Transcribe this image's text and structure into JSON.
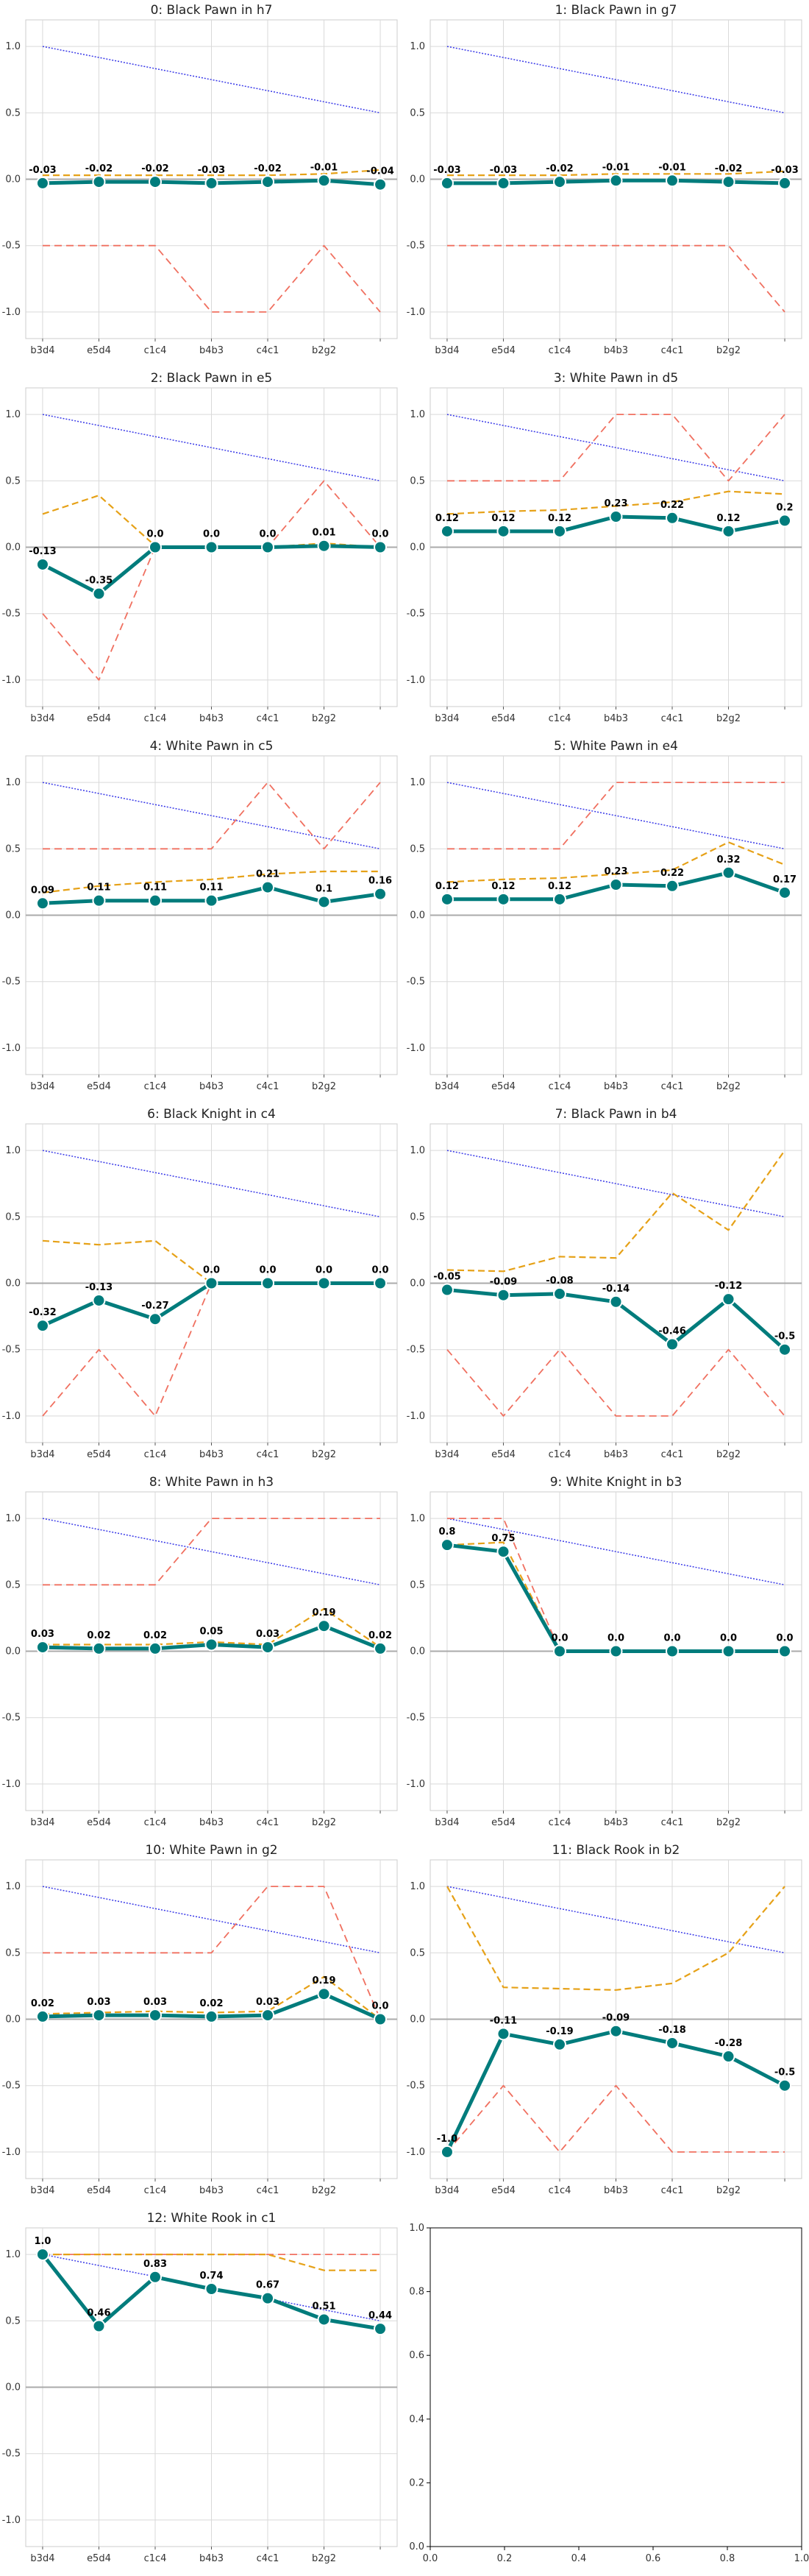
{
  "colors": {
    "main": "#007c7c",
    "orange": "#e6a117",
    "red": "#f07060",
    "blue": "#3a3ae8",
    "grid": "#d9d9d9",
    "zero": "#aaaaaa"
  },
  "chart_data": [
    {
      "type": "line",
      "title": "0: Black Pawn in h7",
      "categories": [
        "b3d4",
        "e5d4",
        "c1c4",
        "b4b3",
        "c4c1",
        "b2g2",
        ""
      ],
      "ylim": [
        -1.2,
        1.2
      ],
      "yticks": [
        "-1.0",
        "-0.5",
        "0.0",
        "0.5",
        "1.0"
      ],
      "grid": true,
      "series": [
        {
          "style": "main",
          "values": [
            -0.03,
            -0.02,
            -0.02,
            -0.03,
            -0.02,
            -0.01,
            -0.04
          ],
          "labels": [
            "-0.03",
            "-0.02",
            "-0.02",
            "-0.03",
            "-0.02",
            "-0.01",
            "-0.04"
          ]
        },
        {
          "style": "orange",
          "values": [
            0.03,
            0.03,
            0.03,
            0.03,
            0.03,
            0.04,
            0.07
          ]
        },
        {
          "style": "red",
          "values": [
            -0.5,
            -0.5,
            -0.5,
            -1.0,
            -1.0,
            -0.5,
            -1.0
          ]
        },
        {
          "style": "blue",
          "values": [
            1.0,
            0.917,
            0.833,
            0.75,
            0.667,
            0.583,
            0.5
          ]
        }
      ]
    },
    {
      "type": "line",
      "title": "1: Black Pawn in g7",
      "categories": [
        "b3d4",
        "e5d4",
        "c1c4",
        "b4b3",
        "c4c1",
        "b2g2",
        ""
      ],
      "ylim": [
        -1.2,
        1.2
      ],
      "yticks": [
        "-1.0",
        "-0.5",
        "0.0",
        "0.5",
        "1.0"
      ],
      "grid": true,
      "series": [
        {
          "style": "main",
          "values": [
            -0.03,
            -0.03,
            -0.02,
            -0.01,
            -0.01,
            -0.02,
            -0.03
          ],
          "labels": [
            "-0.03",
            "-0.03",
            "-0.02",
            "-0.01",
            "-0.01",
            "-0.02",
            "-0.03"
          ]
        },
        {
          "style": "orange",
          "values": [
            0.03,
            0.03,
            0.03,
            0.04,
            0.04,
            0.04,
            0.06
          ]
        },
        {
          "style": "red",
          "values": [
            -0.5,
            -0.5,
            -0.5,
            -0.5,
            -0.5,
            -0.5,
            -1.0
          ]
        },
        {
          "style": "blue",
          "values": [
            1.0,
            0.917,
            0.833,
            0.75,
            0.667,
            0.583,
            0.5
          ]
        }
      ]
    },
    {
      "type": "line",
      "title": "2: Black Pawn in e5",
      "categories": [
        "b3d4",
        "e5d4",
        "c1c4",
        "b4b3",
        "c4c1",
        "b2g2",
        ""
      ],
      "ylim": [
        -1.2,
        1.2
      ],
      "yticks": [
        "-1.0",
        "-0.5",
        "0.0",
        "0.5",
        "1.0"
      ],
      "grid": true,
      "series": [
        {
          "style": "main",
          "values": [
            -0.13,
            -0.35,
            0.0,
            0.0,
            0.0,
            0.01,
            0.0
          ],
          "labels": [
            "-0.13",
            "-0.35",
            "0.0",
            "0.0",
            "0.0",
            "0.01",
            "0.0"
          ]
        },
        {
          "style": "orange",
          "values": [
            0.25,
            0.39,
            0.01,
            0.0,
            0.0,
            0.03,
            0.0
          ]
        },
        {
          "style": "red",
          "values": [
            -0.5,
            -1.0,
            0.0,
            0.0,
            0.0,
            0.5,
            0.0
          ]
        },
        {
          "style": "blue",
          "values": [
            1.0,
            0.917,
            0.833,
            0.75,
            0.667,
            0.583,
            0.5
          ]
        }
      ]
    },
    {
      "type": "line",
      "title": "3: White Pawn in d5",
      "categories": [
        "b3d4",
        "e5d4",
        "c1c4",
        "b4b3",
        "c4c1",
        "b2g2",
        ""
      ],
      "ylim": [
        -1.2,
        1.2
      ],
      "yticks": [
        "-1.0",
        "-0.5",
        "0.0",
        "0.5",
        "1.0"
      ],
      "grid": true,
      "series": [
        {
          "style": "main",
          "values": [
            0.12,
            0.12,
            0.12,
            0.23,
            0.22,
            0.12,
            0.2
          ],
          "labels": [
            "0.12",
            "0.12",
            "0.12",
            "0.23",
            "0.22",
            "0.12",
            "0.2"
          ]
        },
        {
          "style": "orange",
          "values": [
            0.25,
            0.27,
            0.28,
            0.31,
            0.34,
            0.42,
            0.4
          ]
        },
        {
          "style": "red",
          "values": [
            0.5,
            0.5,
            0.5,
            1.0,
            1.0,
            0.5,
            1.0
          ]
        },
        {
          "style": "blue",
          "values": [
            1.0,
            0.917,
            0.833,
            0.75,
            0.667,
            0.583,
            0.5
          ]
        }
      ]
    },
    {
      "type": "line",
      "title": "4: White Pawn in c5",
      "categories": [
        "b3d4",
        "e5d4",
        "c1c4",
        "b4b3",
        "c4c1",
        "b2g2",
        ""
      ],
      "ylim": [
        -1.2,
        1.2
      ],
      "yticks": [
        "-1.0",
        "-0.5",
        "0.0",
        "0.5",
        "1.0"
      ],
      "grid": true,
      "series": [
        {
          "style": "main",
          "values": [
            0.09,
            0.11,
            0.11,
            0.11,
            0.21,
            0.1,
            0.16
          ],
          "labels": [
            "0.09",
            "0.11",
            "0.11",
            "0.11",
            "0.21",
            "0.1",
            "0.16"
          ]
        },
        {
          "style": "orange",
          "values": [
            0.17,
            0.22,
            0.25,
            0.27,
            0.31,
            0.33,
            0.33
          ]
        },
        {
          "style": "red",
          "values": [
            0.5,
            0.5,
            0.5,
            0.5,
            1.0,
            0.5,
            1.0
          ]
        },
        {
          "style": "blue",
          "values": [
            1.0,
            0.917,
            0.833,
            0.75,
            0.667,
            0.583,
            0.5
          ]
        }
      ]
    },
    {
      "type": "line",
      "title": "5: White Pawn in e4",
      "categories": [
        "b3d4",
        "e5d4",
        "c1c4",
        "b4b3",
        "c4c1",
        "b2g2",
        ""
      ],
      "ylim": [
        -1.2,
        1.2
      ],
      "yticks": [
        "-1.0",
        "-0.5",
        "0.0",
        "0.5",
        "1.0"
      ],
      "grid": true,
      "series": [
        {
          "style": "main",
          "values": [
            0.12,
            0.12,
            0.12,
            0.23,
            0.22,
            0.32,
            0.17
          ],
          "labels": [
            "0.12",
            "0.12",
            "0.12",
            "0.23",
            "0.22",
            "0.32",
            "0.17"
          ]
        },
        {
          "style": "orange",
          "values": [
            0.25,
            0.27,
            0.28,
            0.31,
            0.34,
            0.55,
            0.38
          ]
        },
        {
          "style": "red",
          "values": [
            0.5,
            0.5,
            0.5,
            1.0,
            1.0,
            1.0,
            1.0
          ]
        },
        {
          "style": "blue",
          "values": [
            1.0,
            0.917,
            0.833,
            0.75,
            0.667,
            0.583,
            0.5
          ]
        }
      ]
    },
    {
      "type": "line",
      "title": "6: Black Knight in c4",
      "categories": [
        "b3d4",
        "e5d4",
        "c1c4",
        "b4b3",
        "c4c1",
        "b2g2",
        ""
      ],
      "ylim": [
        -1.2,
        1.2
      ],
      "yticks": [
        "-1.0",
        "-0.5",
        "0.0",
        "0.5",
        "1.0"
      ],
      "grid": true,
      "series": [
        {
          "style": "main",
          "values": [
            -0.32,
            -0.13,
            -0.27,
            0.0,
            0.0,
            0.0,
            0.0
          ],
          "labels": [
            "-0.32",
            "-0.13",
            "-0.27",
            "0.0",
            "0.0",
            "0.0",
            "0.0"
          ]
        },
        {
          "style": "orange",
          "values": [
            0.32,
            0.29,
            0.32,
            0.0,
            0.0,
            0.0,
            0.0
          ]
        },
        {
          "style": "red",
          "values": [
            -1.0,
            -0.5,
            -1.0,
            0.0,
            0.0,
            0.0,
            0.0
          ]
        },
        {
          "style": "blue",
          "values": [
            1.0,
            0.917,
            0.833,
            0.75,
            0.667,
            0.583,
            0.5
          ]
        }
      ]
    },
    {
      "type": "line",
      "title": "7: Black Pawn in b4",
      "categories": [
        "b3d4",
        "e5d4",
        "c1c4",
        "b4b3",
        "c4c1",
        "b2g2",
        ""
      ],
      "ylim": [
        -1.2,
        1.2
      ],
      "yticks": [
        "-1.0",
        "-0.5",
        "0.0",
        "0.5",
        "1.0"
      ],
      "grid": true,
      "series": [
        {
          "style": "main",
          "values": [
            -0.05,
            -0.09,
            -0.08,
            -0.14,
            -0.46,
            -0.12,
            -0.5
          ],
          "labels": [
            "-0.05",
            "-0.09",
            "-0.08",
            "-0.14",
            "-0.46",
            "-0.12",
            "-0.5"
          ]
        },
        {
          "style": "orange",
          "values": [
            0.1,
            0.09,
            0.2,
            0.19,
            0.68,
            0.4,
            1.0
          ]
        },
        {
          "style": "red",
          "values": [
            -0.5,
            -1.0,
            -0.5,
            -1.0,
            -1.0,
            -0.5,
            -1.0
          ]
        },
        {
          "style": "blue",
          "values": [
            1.0,
            0.917,
            0.833,
            0.75,
            0.667,
            0.583,
            0.5
          ]
        }
      ]
    },
    {
      "type": "line",
      "title": "8: White Pawn in h3",
      "categories": [
        "b3d4",
        "e5d4",
        "c1c4",
        "b4b3",
        "c4c1",
        "b2g2",
        ""
      ],
      "ylim": [
        -1.2,
        1.2
      ],
      "yticks": [
        "-1.0",
        "-0.5",
        "0.0",
        "0.5",
        "1.0"
      ],
      "grid": true,
      "series": [
        {
          "style": "main",
          "values": [
            0.03,
            0.02,
            0.02,
            0.05,
            0.03,
            0.19,
            0.02
          ],
          "labels": [
            "0.03",
            "0.02",
            "0.02",
            "0.05",
            "0.03",
            "0.19",
            "0.02"
          ]
        },
        {
          "style": "orange",
          "values": [
            0.05,
            0.05,
            0.05,
            0.07,
            0.05,
            0.32,
            0.03
          ]
        },
        {
          "style": "red",
          "values": [
            0.5,
            0.5,
            0.5,
            1.0,
            1.0,
            1.0,
            1.0
          ]
        },
        {
          "style": "blue",
          "values": [
            1.0,
            0.917,
            0.833,
            0.75,
            0.667,
            0.583,
            0.5
          ]
        }
      ]
    },
    {
      "type": "line",
      "title": "9: White Knight in b3",
      "categories": [
        "b3d4",
        "e5d4",
        "c1c4",
        "b4b3",
        "c4c1",
        "b2g2",
        ""
      ],
      "ylim": [
        -1.2,
        1.2
      ],
      "yticks": [
        "-1.0",
        "-0.5",
        "0.0",
        "0.5",
        "1.0"
      ],
      "grid": true,
      "series": [
        {
          "style": "main",
          "values": [
            0.8,
            0.75,
            0.0,
            0.0,
            0.0,
            0.0,
            0.0
          ],
          "labels": [
            "0.8",
            "0.75",
            "0.0",
            "0.0",
            "0.0",
            "0.0",
            "0.0"
          ]
        },
        {
          "style": "orange",
          "values": [
            0.8,
            0.82,
            0.0,
            0.0,
            0.0,
            0.0,
            0.0
          ]
        },
        {
          "style": "red",
          "values": [
            1.0,
            1.0,
            0.0,
            0.0,
            0.0,
            0.0,
            0.0
          ]
        },
        {
          "style": "blue",
          "values": [
            1.0,
            0.917,
            0.833,
            0.75,
            0.667,
            0.583,
            0.5
          ]
        }
      ]
    },
    {
      "type": "line",
      "title": "10: White Pawn in g2",
      "categories": [
        "b3d4",
        "e5d4",
        "c1c4",
        "b4b3",
        "c4c1",
        "b2g2",
        ""
      ],
      "ylim": [
        -1.2,
        1.2
      ],
      "yticks": [
        "-1.0",
        "-0.5",
        "0.0",
        "0.5",
        "1.0"
      ],
      "grid": true,
      "series": [
        {
          "style": "main",
          "values": [
            0.02,
            0.03,
            0.03,
            0.02,
            0.03,
            0.19,
            0.0
          ],
          "labels": [
            "0.02",
            "0.03",
            "0.03",
            "0.02",
            "0.03",
            "0.19",
            "0.0"
          ]
        },
        {
          "style": "orange",
          "values": [
            0.04,
            0.05,
            0.06,
            0.05,
            0.06,
            0.32,
            0.0
          ]
        },
        {
          "style": "red",
          "values": [
            0.5,
            0.5,
            0.5,
            0.5,
            1.0,
            1.0,
            0.0
          ]
        },
        {
          "style": "blue",
          "values": [
            1.0,
            0.917,
            0.833,
            0.75,
            0.667,
            0.583,
            0.5
          ]
        }
      ]
    },
    {
      "type": "line",
      "title": "11: Black Rook in b2",
      "categories": [
        "b3d4",
        "e5d4",
        "c1c4",
        "b4b3",
        "c4c1",
        "b2g2",
        ""
      ],
      "ylim": [
        -1.2,
        1.2
      ],
      "yticks": [
        "-1.0",
        "-0.5",
        "0.0",
        "0.5",
        "1.0"
      ],
      "grid": true,
      "series": [
        {
          "style": "main",
          "values": [
            -1.0,
            -0.11,
            -0.19,
            -0.09,
            -0.18,
            -0.28,
            -0.5
          ],
          "labels": [
            "-1.0",
            "-0.11",
            "-0.19",
            "-0.09",
            "-0.18",
            "-0.28",
            "-0.5"
          ]
        },
        {
          "style": "orange",
          "values": [
            1.0,
            0.24,
            0.23,
            0.22,
            0.27,
            0.5,
            1.0
          ]
        },
        {
          "style": "red",
          "values": [
            -1.0,
            -0.5,
            -1.0,
            -0.5,
            -1.0,
            -1.0,
            -1.0
          ]
        },
        {
          "style": "blue",
          "values": [
            1.0,
            0.917,
            0.833,
            0.75,
            0.667,
            0.583,
            0.5
          ]
        }
      ]
    },
    {
      "type": "line",
      "title": "12: White Rook in c1",
      "categories": [
        "b3d4",
        "e5d4",
        "c1c4",
        "b4b3",
        "c4c1",
        "b2g2",
        ""
      ],
      "ylim": [
        -1.2,
        1.2
      ],
      "yticks": [
        "-1.0",
        "-0.5",
        "0.0",
        "0.5",
        "1.0"
      ],
      "grid": true,
      "series": [
        {
          "style": "main",
          "values": [
            1.0,
            0.46,
            0.83,
            0.74,
            0.67,
            0.51,
            0.44
          ],
          "labels": [
            "1.0",
            "0.46",
            "0.83",
            "0.74",
            "0.67",
            "0.51",
            "0.44"
          ]
        },
        {
          "style": "orange",
          "values": [
            1.0,
            1.0,
            1.0,
            1.0,
            1.0,
            0.88,
            0.88
          ]
        },
        {
          "style": "red",
          "values": [
            1.0,
            1.0,
            1.0,
            1.0,
            1.0,
            1.0,
            1.0
          ]
        },
        {
          "style": "blue",
          "values": [
            1.0,
            0.917,
            0.833,
            0.75,
            0.667,
            0.583,
            0.5
          ]
        }
      ]
    },
    {
      "type": "line",
      "title": "",
      "empty": true,
      "xlim": [
        0.0,
        1.0
      ],
      "ylim": [
        0.0,
        1.0
      ],
      "xticks": [
        "0.0",
        "0.2",
        "0.4",
        "0.6",
        "0.8",
        "1.0"
      ],
      "yticks": [
        "0.0",
        "0.2",
        "0.4",
        "0.6",
        "0.8",
        "1.0"
      ],
      "grid": false
    }
  ]
}
